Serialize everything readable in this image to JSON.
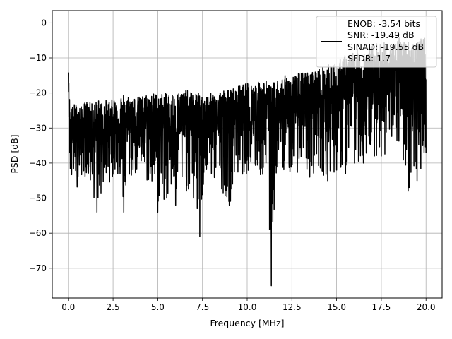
{
  "chart_data": {
    "type": "line",
    "xlabel": "Frequency [MHz]",
    "ylabel": "PSD [dB]",
    "xlim": [
      -0.9,
      20.9
    ],
    "ylim": [
      -78.5,
      3.5
    ],
    "xticks": [
      0.0,
      2.5,
      5.0,
      7.5,
      10.0,
      12.5,
      15.0,
      17.5,
      20.0
    ],
    "xtick_labels": [
      "0.0",
      "2.5",
      "5.0",
      "7.5",
      "10.0",
      "12.5",
      "15.0",
      "17.5",
      "20.0"
    ],
    "yticks": [
      0,
      -10,
      -20,
      -30,
      -40,
      -50,
      -60,
      -70
    ],
    "ytick_labels": [
      "0",
      "−10",
      "−20",
      "−30",
      "−40",
      "−50",
      "−60",
      "−70"
    ],
    "grid": true,
    "legend_position": "top-right",
    "legend_lines": [
      "ENOB: -3.54 bits",
      "SNR: -19.49 dB",
      "SINAD: -19.55 dB",
      "SFDR: 1.7"
    ],
    "series_color": "#000000",
    "series": [
      {
        "color": "#000000",
        "x": [
          0.0,
          0.05,
          0.1,
          0.2,
          0.3,
          0.5,
          0.7,
          1.0,
          1.3,
          1.6,
          2.0,
          2.4,
          2.8,
          3.1,
          3.5,
          4.0,
          4.5,
          5.0,
          5.5,
          6.0,
          6.5,
          7.0,
          7.35,
          7.5,
          8.0,
          8.5,
          9.0,
          9.5,
          10.0,
          10.5,
          11.0,
          11.35,
          11.6,
          12.0,
          12.5,
          13.0,
          13.5,
          14.0,
          14.5,
          15.0,
          15.5,
          16.0,
          16.5,
          17.0,
          17.5,
          18.0,
          18.5,
          19.0,
          19.5,
          20.0
        ],
        "y_mean": [
          -14,
          -22,
          -34,
          -32,
          -33,
          -31,
          -32,
          -31,
          -32,
          -30,
          -31,
          -30,
          -29,
          -30,
          -29,
          -30,
          -29,
          -29,
          -30,
          -29,
          -29,
          -28,
          -30,
          -29,
          -28,
          -28,
          -28,
          -27,
          -27,
          -27,
          -26,
          -28,
          -26,
          -26,
          -25,
          -25,
          -24,
          -24,
          -23,
          -22,
          -21,
          -20,
          -20,
          -19,
          -18,
          -19,
          -17,
          -18,
          -17,
          -16
        ],
        "y_min": [
          -16,
          -38,
          -44,
          -49,
          -45,
          -47,
          -44,
          -44,
          -48,
          -54,
          -47,
          -45,
          -44,
          -54,
          -45,
          -43,
          -47,
          -54,
          -50,
          -52,
          -48,
          -50,
          -61,
          -49,
          -45,
          -47,
          -52,
          -44,
          -43,
          -44,
          -45,
          -75,
          -44,
          -42,
          -44,
          -42,
          -44,
          -42,
          -45,
          -42,
          -43,
          -40,
          -40,
          -38,
          -38,
          -38,
          -36,
          -48,
          -45,
          -37
        ],
        "y_max": [
          -14,
          -20,
          -23,
          -24,
          -23,
          -23,
          -24,
          -22,
          -23,
          -22,
          -22,
          -22,
          -21,
          -20,
          -21,
          -21,
          -20,
          -20,
          -20,
          -20,
          -19,
          -20,
          -20,
          -21,
          -20,
          -19,
          -19,
          -18,
          -17,
          -17,
          -16,
          -18,
          -16,
          -15,
          -15,
          -14,
          -14,
          -13,
          -12,
          -11,
          -9,
          -8,
          -7,
          -6,
          -5,
          -6,
          -4,
          -5,
          -5,
          -4
        ]
      }
    ]
  }
}
